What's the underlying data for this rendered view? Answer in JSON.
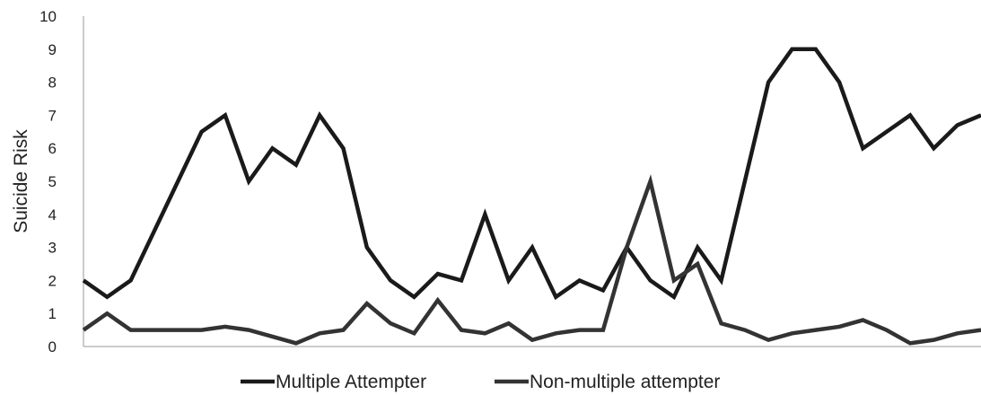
{
  "chart_data": {
    "type": "line",
    "title": "",
    "xlabel": "",
    "ylabel": "Suicide Risk",
    "ylim": [
      0,
      10
    ],
    "yticks": [
      "0",
      "1",
      "2",
      "3",
      "4",
      "5",
      "6",
      "7",
      "8",
      "9",
      "10"
    ],
    "grid": false,
    "legend_position": "bottom",
    "x": [
      1,
      2,
      3,
      4,
      5,
      6,
      7,
      8,
      9,
      10,
      11,
      12,
      13,
      14,
      15,
      16,
      17,
      18,
      19,
      20,
      21,
      22,
      23,
      24,
      25,
      26,
      27,
      28,
      29,
      30,
      31,
      32,
      33,
      34,
      35,
      36,
      37,
      38,
      39
    ],
    "series": [
      {
        "name": "Multiple Attempter",
        "color": "#1a1a1a",
        "values": [
          2,
          1.5,
          2,
          3.5,
          5,
          6.5,
          7,
          5,
          6,
          5.5,
          7,
          6,
          3,
          2,
          1.5,
          2.2,
          2,
          4,
          2,
          3,
          1.5,
          2,
          1.7,
          3,
          2,
          1.5,
          3,
          2,
          5,
          8,
          9,
          9,
          8,
          6,
          6.5,
          7,
          6,
          6.7,
          7
        ]
      },
      {
        "name": "Non-multiple attempter",
        "color": "#333333",
        "values": [
          0.5,
          1,
          0.5,
          0.5,
          0.5,
          0.5,
          0.6,
          0.5,
          0.3,
          0.1,
          0.4,
          0.5,
          1.3,
          0.7,
          0.4,
          1.4,
          0.5,
          0.4,
          0.7,
          0.2,
          0.4,
          0.5,
          0.5,
          3,
          5,
          2,
          2.5,
          0.7,
          0.5,
          0.2,
          0.4,
          0.5,
          0.6,
          0.8,
          0.5,
          0.1,
          0.2,
          0.4,
          0.5
        ]
      }
    ]
  }
}
